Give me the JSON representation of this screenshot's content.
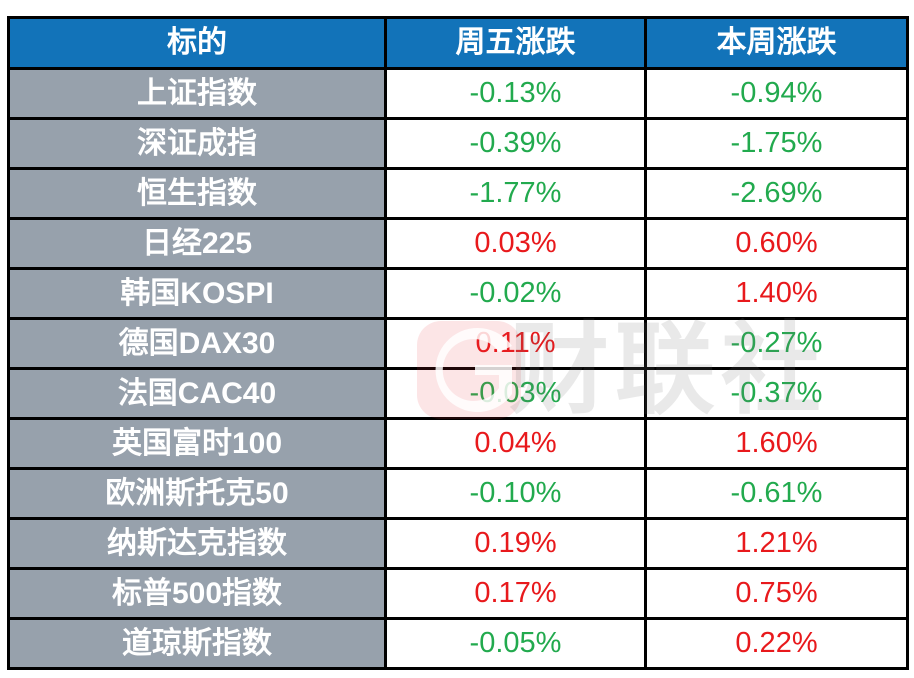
{
  "table": {
    "headers": [
      {
        "label": "标的"
      },
      {
        "label": "周五涨跌"
      },
      {
        "label": "本周涨跌"
      }
    ],
    "rows": [
      {
        "name": "上证指数",
        "friday": "-0.13%",
        "friday_dir": "down",
        "week": "-0.94%",
        "week_dir": "down"
      },
      {
        "name": "深证成指",
        "friday": "-0.39%",
        "friday_dir": "down",
        "week": "-1.75%",
        "week_dir": "down"
      },
      {
        "name": "恒生指数",
        "friday": "-1.77%",
        "friday_dir": "down",
        "week": "-2.69%",
        "week_dir": "down"
      },
      {
        "name": "日经225",
        "friday": "0.03%",
        "friday_dir": "up",
        "week": "0.60%",
        "week_dir": "up"
      },
      {
        "name": "韩国KOSPI",
        "friday": "-0.02%",
        "friday_dir": "down",
        "week": "1.40%",
        "week_dir": "up"
      },
      {
        "name": "德国DAX30",
        "friday": "0.11%",
        "friday_dir": "up",
        "week": "-0.27%",
        "week_dir": "down"
      },
      {
        "name": "法国CAC40",
        "friday": "-0.03%",
        "friday_dir": "down",
        "week": "-0.37%",
        "week_dir": "down"
      },
      {
        "name": "英国富时100",
        "friday": "0.04%",
        "friday_dir": "up",
        "week": "1.60%",
        "week_dir": "up"
      },
      {
        "name": "欧洲斯托克50",
        "friday": "-0.10%",
        "friday_dir": "down",
        "week": "-0.61%",
        "week_dir": "down"
      },
      {
        "name": "纳斯达克指数",
        "friday": "0.19%",
        "friday_dir": "up",
        "week": "1.21%",
        "week_dir": "up"
      },
      {
        "name": "标普500指数",
        "friday": "0.17%",
        "friday_dir": "up",
        "week": "0.75%",
        "week_dir": "up"
      },
      {
        "name": "道琼斯指数",
        "friday": "-0.05%",
        "friday_dir": "down",
        "week": "0.22%",
        "week_dir": "up"
      }
    ]
  },
  "colors": {
    "header_bg": "#1273b9",
    "name_bg": "#97a1ac",
    "up": "#e8191c",
    "down": "#22aa4e",
    "border": "#000000",
    "watermark_red": "#e63340"
  },
  "watermark": {
    "text": "财联社",
    "logo": "cailianshe-logo"
  }
}
